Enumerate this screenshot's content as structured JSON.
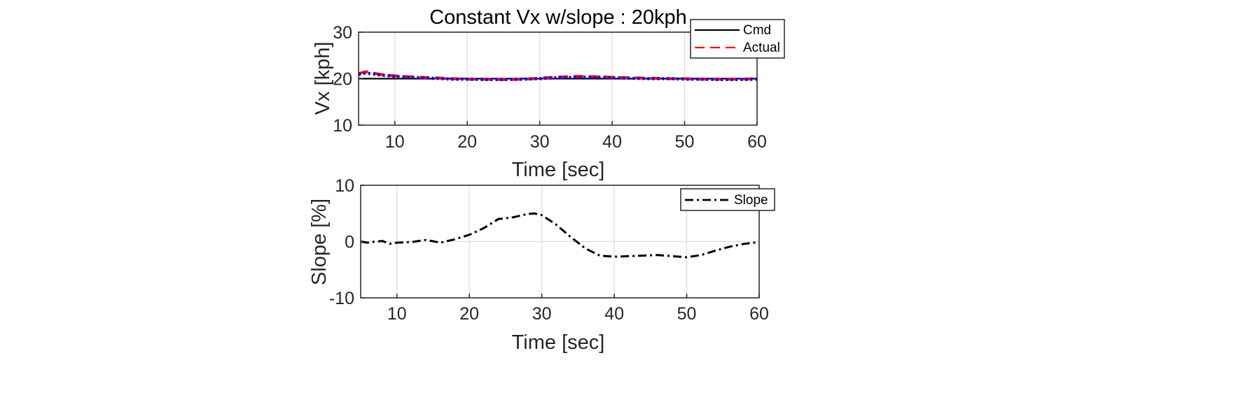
{
  "chart_data": [
    {
      "type": "line",
      "title": "Constant Vx w/slope : 20kph",
      "xlabel": "Time [sec]",
      "ylabel": "Vx [kph]",
      "xlim": [
        5,
        60
      ],
      "ylim": [
        10,
        30
      ],
      "xticks": [
        10,
        20,
        30,
        40,
        50,
        60
      ],
      "yticks": [
        10,
        20,
        30
      ],
      "grid": true,
      "legend": {
        "placement": "top-right",
        "entries": [
          "Cmd",
          "Actual"
        ]
      },
      "series": [
        {
          "name": "Cmd",
          "color": "#000000",
          "style": "solid",
          "x": [
            5,
            60
          ],
          "y": [
            20,
            20
          ]
        },
        {
          "name": "Actual",
          "color": "#ff0000",
          "style": "dashed",
          "x": [
            5,
            6,
            7,
            8,
            10,
            12,
            15,
            18,
            20,
            22,
            25,
            28,
            30,
            32,
            35,
            38,
            40,
            42,
            45,
            48,
            50,
            52,
            55,
            58,
            60
          ],
          "y": [
            21.1,
            21.5,
            21.2,
            20.9,
            20.6,
            20.4,
            20.2,
            20.0,
            19.9,
            19.9,
            19.8,
            19.9,
            20.1,
            20.3,
            20.5,
            20.4,
            20.3,
            20.2,
            20.1,
            20.0,
            20.0,
            19.9,
            19.9,
            19.9,
            20.0
          ]
        },
        {
          "color": "#0000ff",
          "style": "dotted",
          "x": [
            5,
            6,
            7,
            8,
            10,
            12,
            15,
            18,
            20,
            22,
            25,
            28,
            30,
            32,
            35,
            38,
            40,
            42,
            45,
            48,
            50,
            52,
            55,
            58,
            60
          ],
          "y": [
            20.9,
            21.2,
            21.0,
            20.8,
            20.5,
            20.3,
            20.1,
            19.9,
            19.9,
            19.8,
            19.8,
            19.9,
            20.0,
            20.2,
            20.3,
            20.3,
            20.2,
            20.1,
            20.0,
            20.0,
            19.9,
            19.9,
            19.8,
            19.8,
            19.9
          ]
        }
      ]
    },
    {
      "type": "line",
      "title": "",
      "xlabel": "Time [sec]",
      "ylabel": "Slope [%]",
      "xlim": [
        5,
        60
      ],
      "ylim": [
        -10,
        10
      ],
      "xticks": [
        10,
        20,
        30,
        40,
        50,
        60
      ],
      "yticks": [
        -10,
        0,
        10
      ],
      "grid": true,
      "legend": {
        "placement": "top-right",
        "entries": [
          "Slope"
        ]
      },
      "series": [
        {
          "name": "Slope",
          "color": "#000000",
          "style": "dashdot",
          "x": [
            5,
            6,
            7,
            8,
            9,
            10,
            12,
            14,
            16,
            18,
            20,
            22,
            24,
            26,
            28,
            29,
            30,
            32,
            34,
            36,
            38,
            40,
            42,
            44,
            46,
            48,
            50,
            52,
            54,
            56,
            58,
            60
          ],
          "y": [
            0.0,
            -0.2,
            0.0,
            0.1,
            -0.4,
            -0.2,
            -0.1,
            0.3,
            -0.2,
            0.4,
            1.2,
            2.4,
            4.0,
            4.3,
            4.9,
            5.0,
            4.7,
            3.0,
            0.8,
            -1.2,
            -2.5,
            -2.7,
            -2.6,
            -2.5,
            -2.4,
            -2.6,
            -2.8,
            -2.4,
            -1.6,
            -0.9,
            -0.4,
            -0.1
          ]
        }
      ]
    }
  ]
}
